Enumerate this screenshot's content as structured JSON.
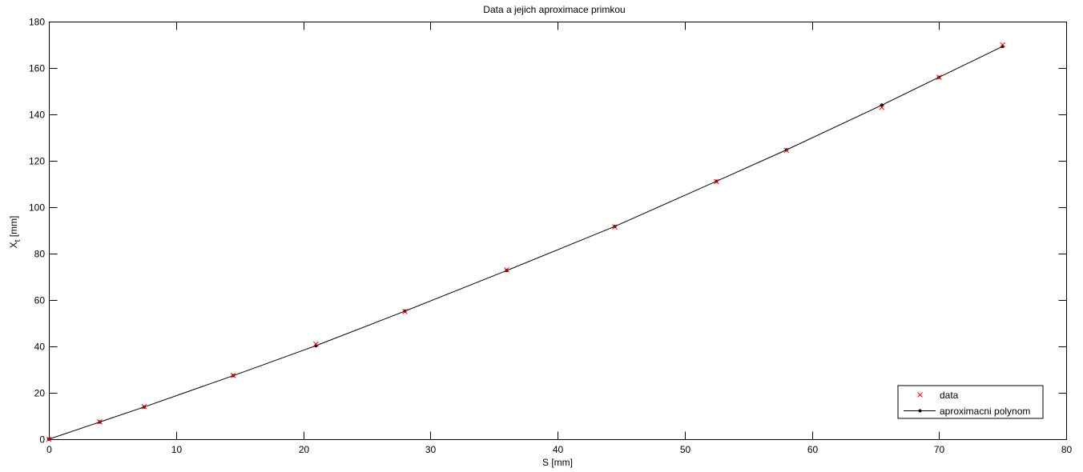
{
  "chart_data": {
    "type": "line",
    "title": "Data a jejich aproximace primkou",
    "xlabel": "S [mm]",
    "ylabel": "X",
    "ylabel_subscript": "t",
    "ylabel_unit": "[mm]",
    "xlim": [
      0,
      80
    ],
    "ylim": [
      0,
      180
    ],
    "xticks": [
      0,
      10,
      20,
      30,
      40,
      50,
      60,
      70,
      80
    ],
    "yticks": [
      0,
      20,
      40,
      60,
      80,
      100,
      120,
      140,
      160,
      180
    ],
    "grid": false,
    "legend_position": "bottom-right",
    "series": [
      {
        "name": "data",
        "style": "marker-x",
        "color": "#ff0000",
        "x": [
          0,
          4,
          7.5,
          14.5,
          21,
          28,
          36,
          44.5,
          52.5,
          58,
          65.5,
          70,
          75
        ],
        "y": [
          0,
          7.5,
          14,
          27.5,
          41,
          55,
          73,
          91.5,
          111,
          124.5,
          143,
          156,
          170
        ]
      },
      {
        "name": "aproximacni polynom",
        "style": "line-dot",
        "color": "#000000",
        "x": [
          0,
          4,
          7.5,
          14.5,
          21,
          28,
          36,
          44.5,
          52.5,
          58,
          65.5,
          70,
          75
        ],
        "y": [
          0,
          7.4,
          13.9,
          27.4,
          40.3,
          55.2,
          72.7,
          91.7,
          111.2,
          124.7,
          144,
          156,
          169.3
        ]
      }
    ]
  }
}
